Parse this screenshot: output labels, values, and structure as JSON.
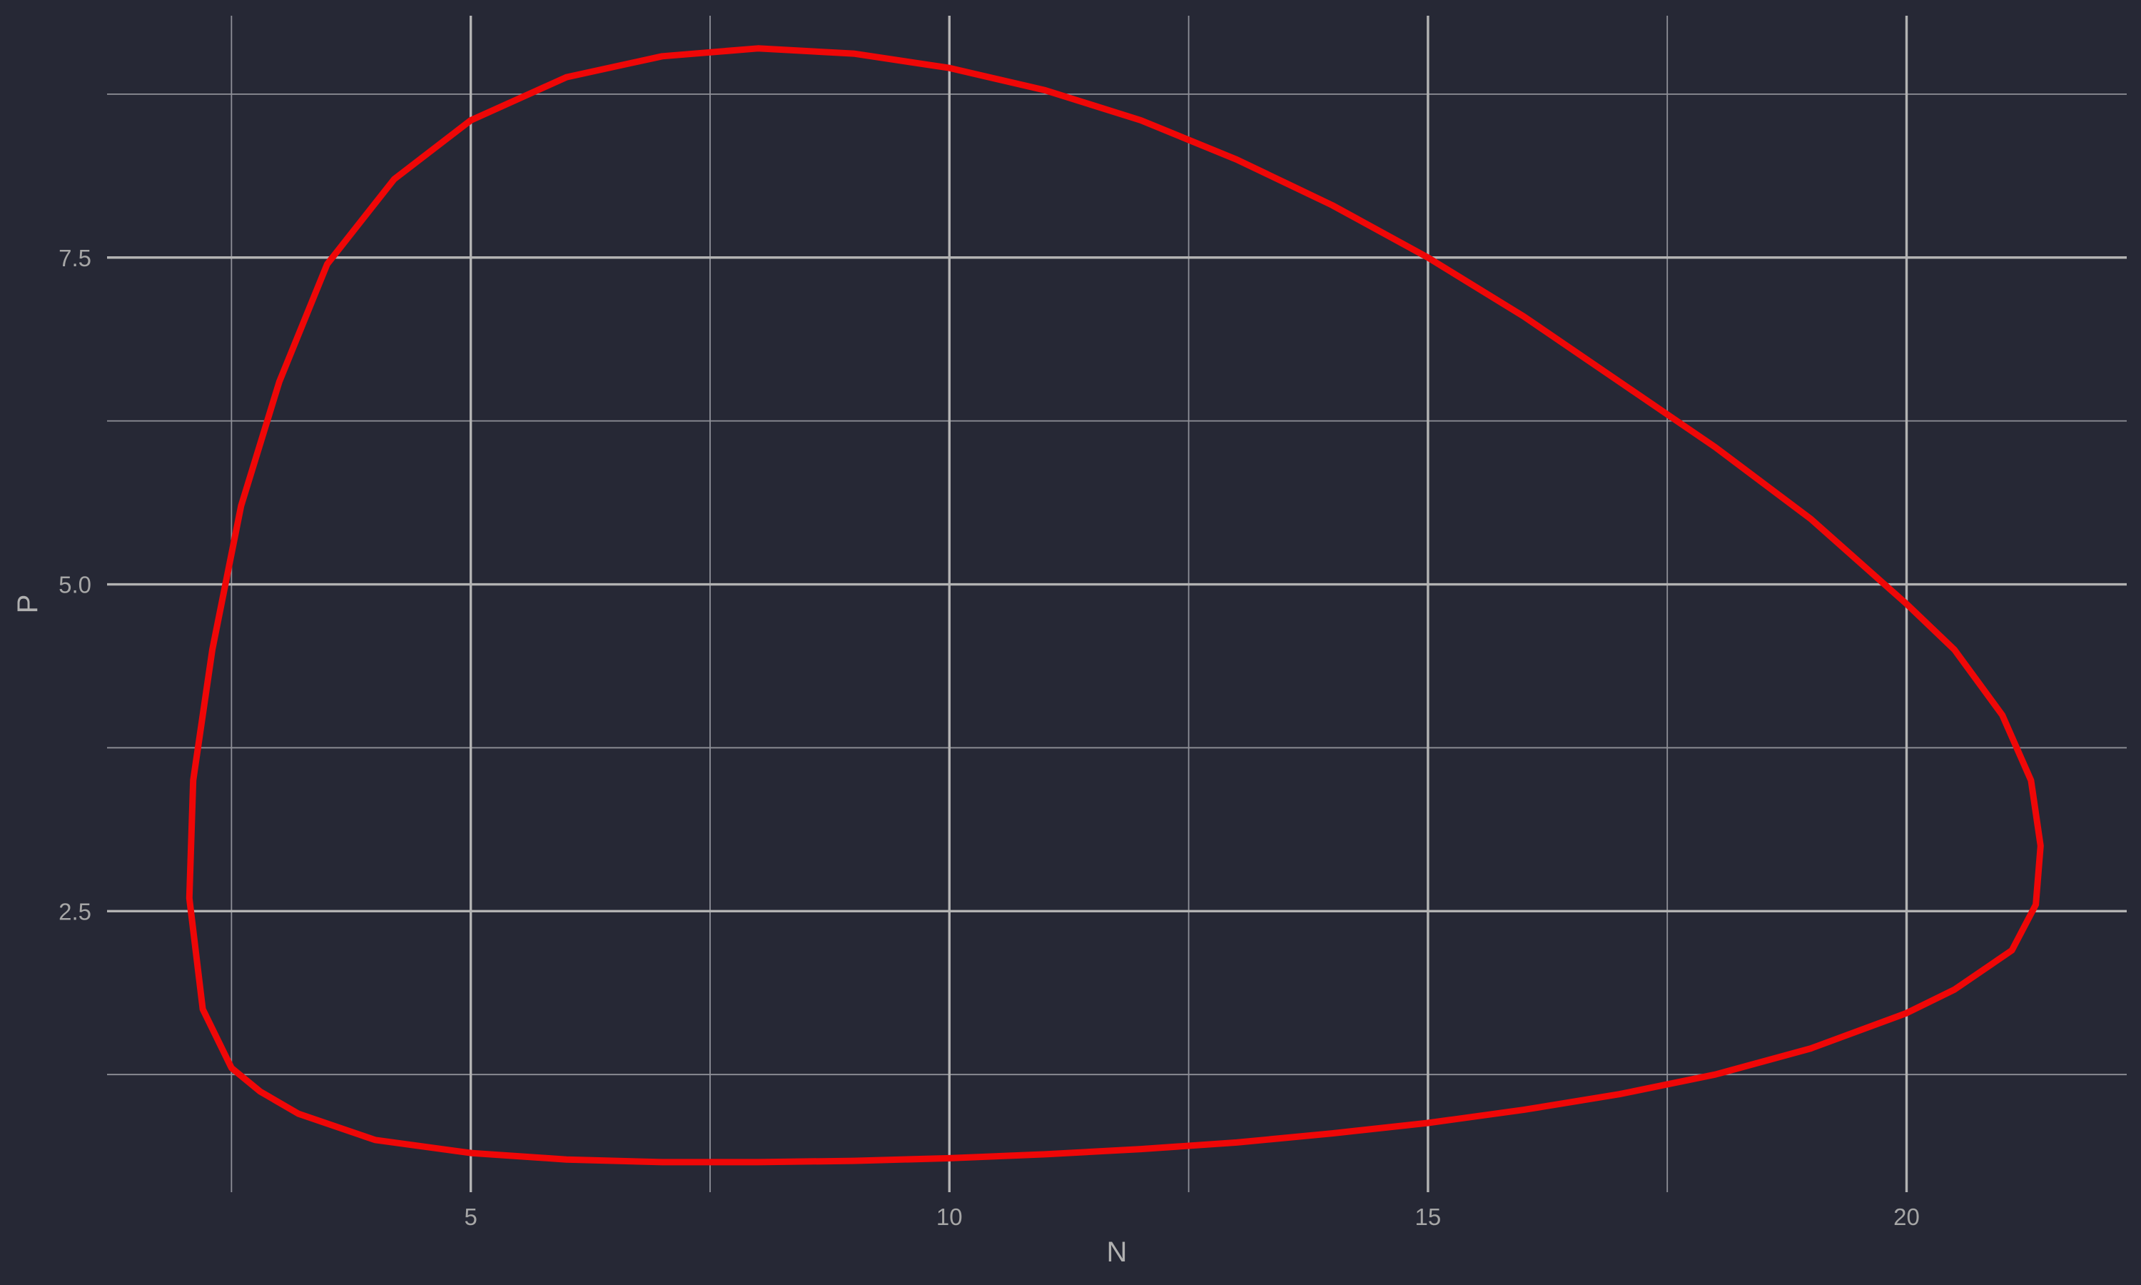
{
  "chart_data": {
    "type": "line",
    "title": "",
    "xlabel": "N",
    "ylabel": "P",
    "xlim": [
      1.2,
      22.3
    ],
    "ylim": [
      0.35,
      9.35
    ],
    "x_ticks": [
      5,
      10,
      15,
      20
    ],
    "y_ticks": [
      2.5,
      5.0,
      7.5
    ],
    "x_tick_labels": [
      "5",
      "10",
      "15",
      "20"
    ],
    "y_tick_labels": [
      "2.5",
      "5.0",
      "7.5"
    ],
    "x_minor": [
      2.5,
      7.5,
      12.5,
      17.5
    ],
    "y_minor": [
      1.25,
      3.75,
      6.25,
      8.75
    ],
    "grid": true,
    "legend": "none",
    "background_color": "#262835",
    "grid_color": "#b3b3b3",
    "series": [
      {
        "color": "#ef0707",
        "x": [
          2.5,
          2.2,
          2.06,
          2.1,
          2.3,
          2.6,
          3.0,
          3.5,
          4.2,
          5.0,
          6.0,
          7.0,
          8.0,
          9.0,
          10.0,
          11.0,
          12.0,
          13.0,
          14.0,
          15.0,
          16.0,
          17.0,
          18.0,
          19.0,
          20.0,
          20.5,
          21.0,
          21.3,
          21.4,
          21.35,
          21.1,
          20.5,
          20.0,
          19.0,
          18.0,
          17.0,
          16.0,
          15.0,
          14.0,
          13.0,
          12.0,
          11.0,
          10.0,
          9.0,
          8.0,
          7.0,
          6.0,
          5.0,
          4.0,
          3.2,
          2.8,
          2.5
        ],
        "y": [
          1.3,
          1.75,
          2.6,
          3.5,
          4.5,
          5.6,
          6.55,
          7.45,
          8.1,
          8.55,
          8.88,
          9.04,
          9.1,
          9.06,
          8.95,
          8.78,
          8.55,
          8.25,
          7.9,
          7.5,
          7.05,
          6.55,
          6.05,
          5.5,
          4.85,
          4.5,
          4.0,
          3.5,
          3.0,
          2.55,
          2.2,
          1.9,
          1.72,
          1.45,
          1.25,
          1.1,
          0.98,
          0.88,
          0.8,
          0.73,
          0.68,
          0.64,
          0.61,
          0.59,
          0.58,
          0.58,
          0.6,
          0.65,
          0.75,
          0.95,
          1.12,
          1.3
        ]
      }
    ]
  }
}
